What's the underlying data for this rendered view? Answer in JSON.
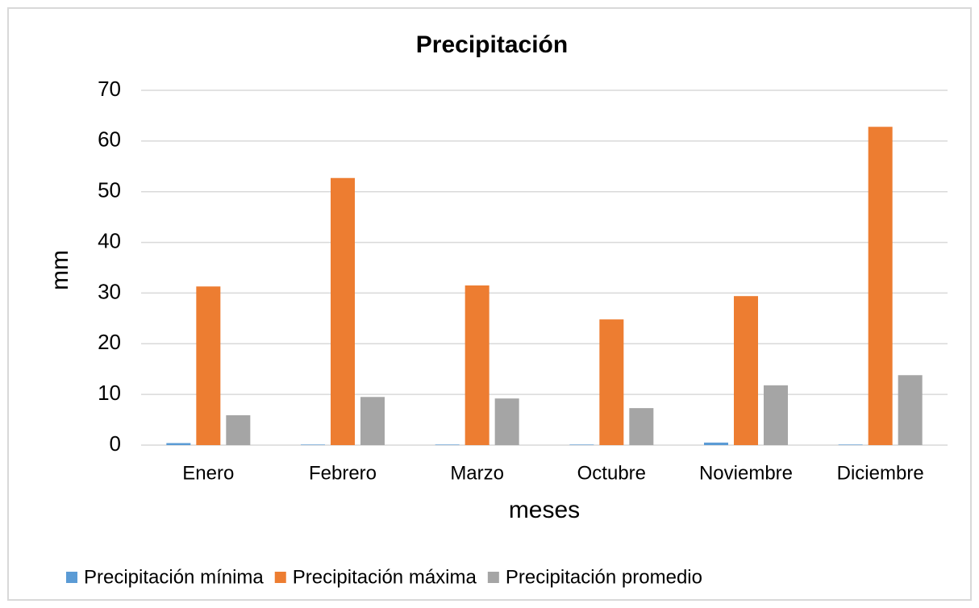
{
  "chart_data": {
    "type": "bar",
    "title": "Precipitación",
    "categories": [
      "Enero",
      "Febrero",
      "Marzo",
      "Octubre",
      "Noviembre",
      "Diciembre"
    ],
    "series": [
      {
        "name": "Precipitación mínima",
        "color": "#5b9bd5",
        "values": [
          0.4,
          0.1,
          0.1,
          0.1,
          0.5,
          0.1
        ]
      },
      {
        "name": "Precipitación máxima",
        "color": "#ed7d31",
        "values": [
          31.3,
          52.7,
          31.5,
          24.8,
          29.4,
          62.8
        ]
      },
      {
        "name": "Precipitación promedio",
        "color": "#a5a5a5",
        "values": [
          5.9,
          9.5,
          9.2,
          7.3,
          11.8,
          13.8
        ]
      }
    ],
    "xlabel": "meses",
    "ylabel": "mm",
    "ylim": [
      0,
      70
    ],
    "yticks": [
      0,
      10,
      20,
      30,
      40,
      50,
      60,
      70
    ],
    "grid": true,
    "legend": "bottom"
  }
}
